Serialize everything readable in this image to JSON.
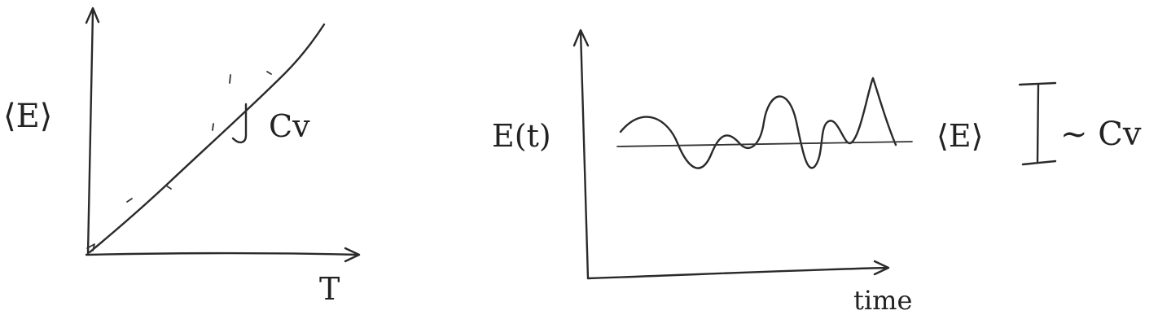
{
  "left_plot": {
    "y_label": "⟨E⟩",
    "x_label": "T",
    "slope_label": "Cv"
  },
  "right_plot": {
    "y_label": "E(t)",
    "x_label": "time",
    "mean_label": "⟨E⟩",
    "fluctuation_label": "~ Cv"
  }
}
